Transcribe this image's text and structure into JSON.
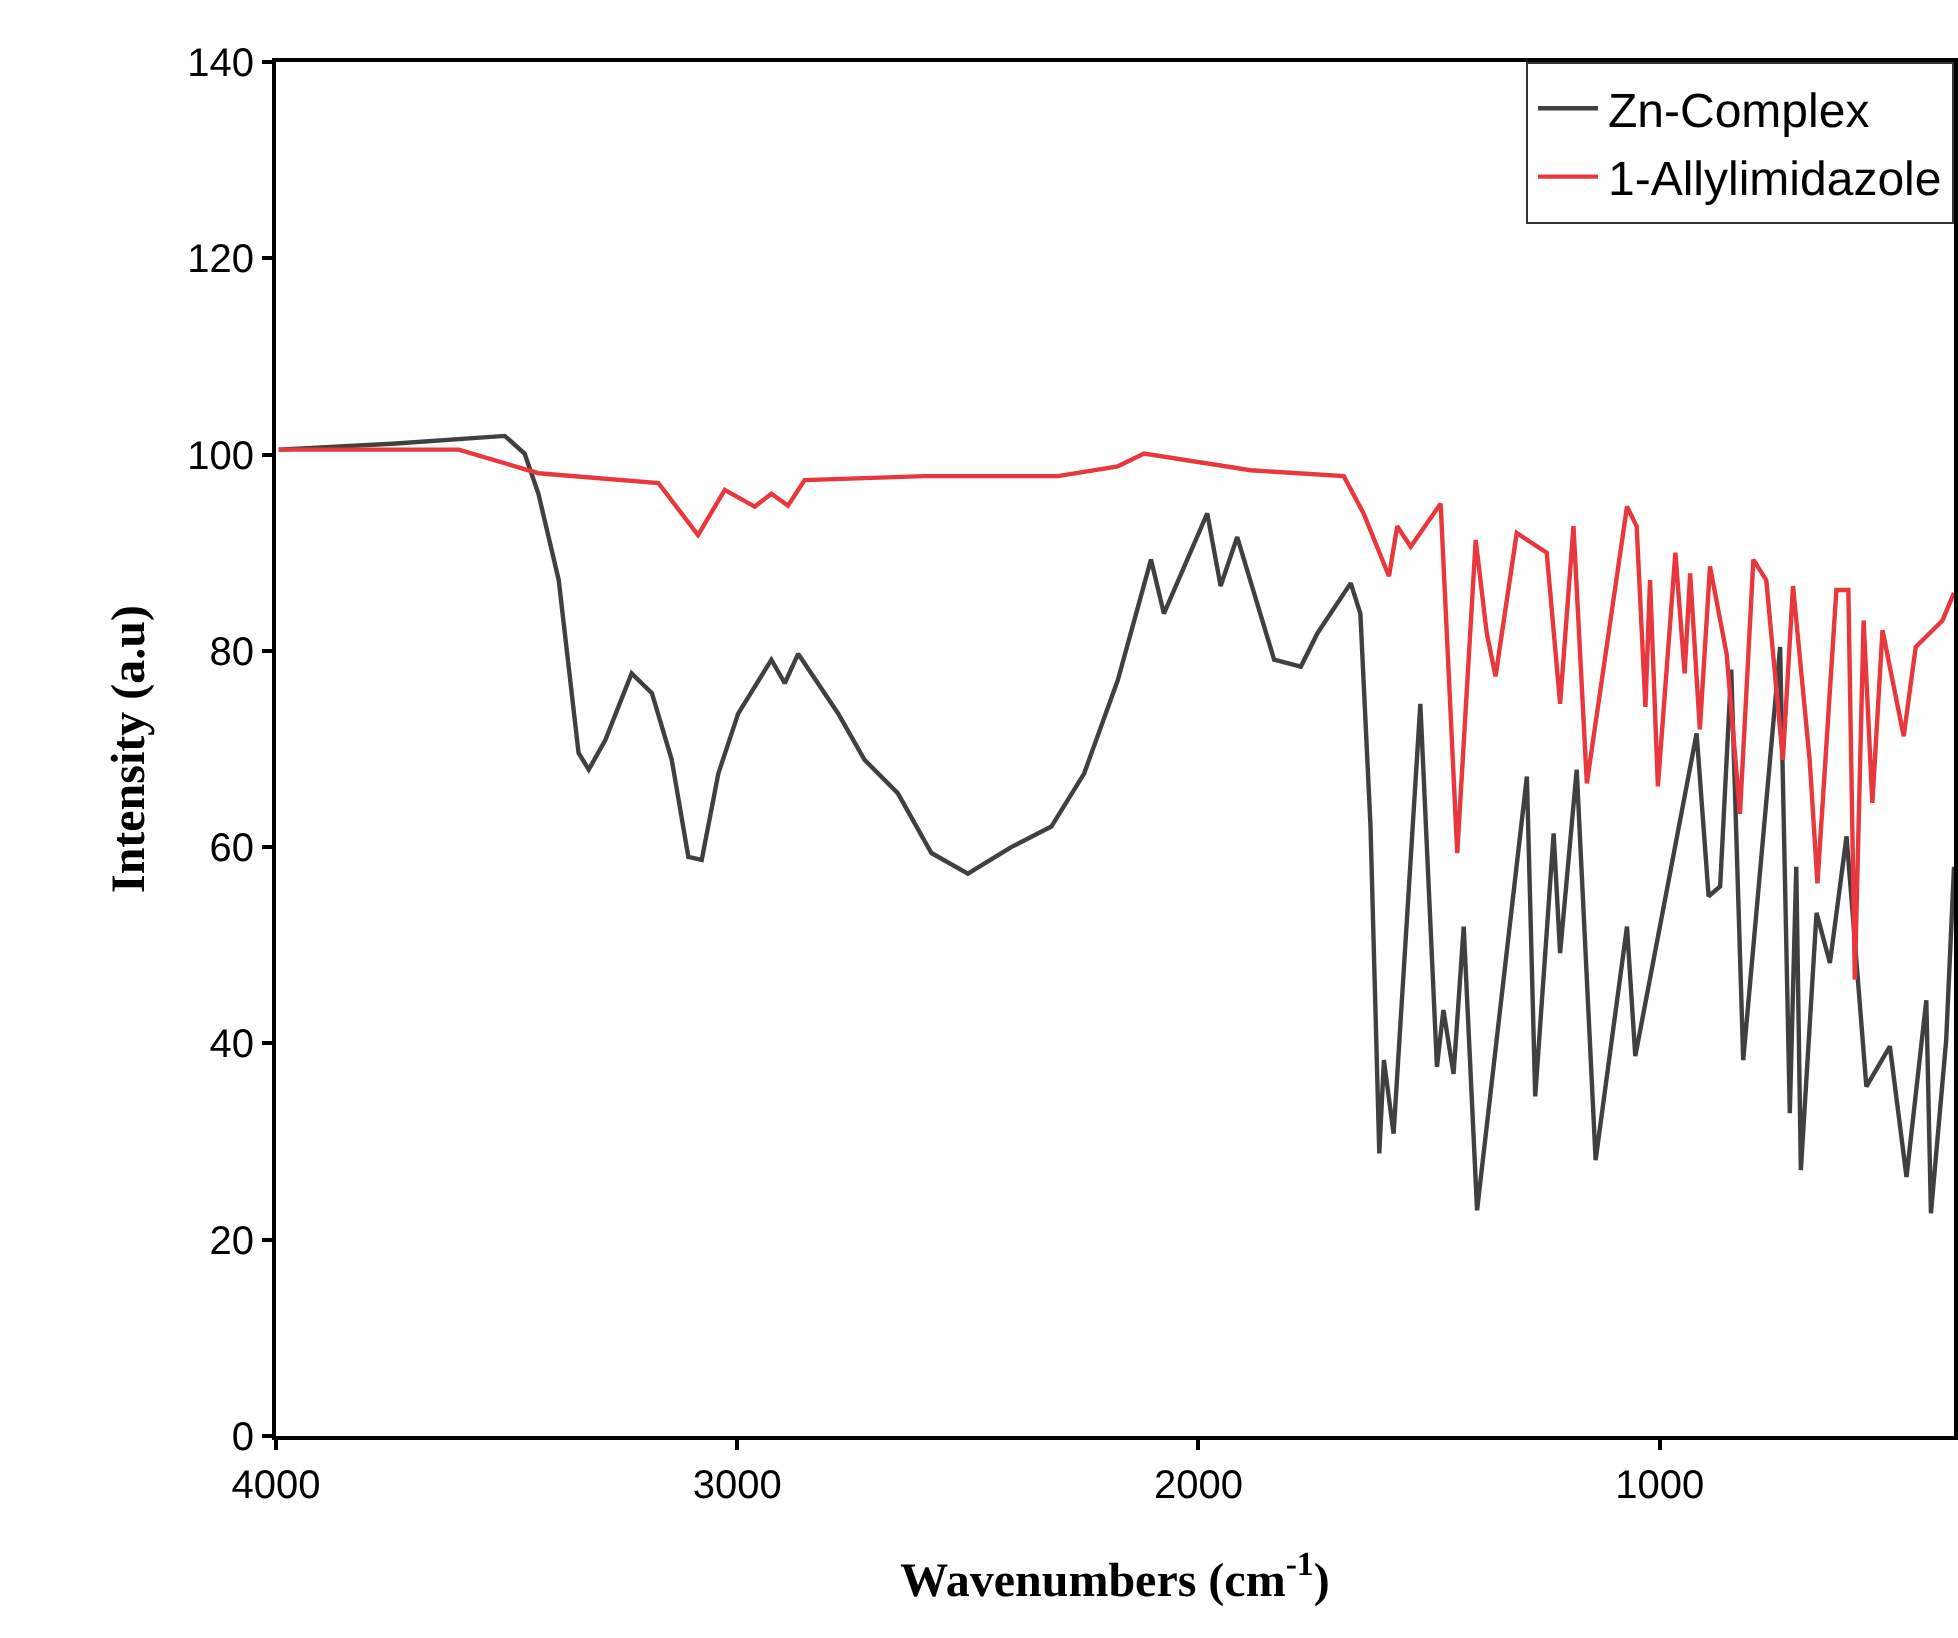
{
  "chart_data": {
    "type": "line",
    "xlabel": "Wavenumbers (cm$^{-1}$)",
    "ylabel": "Intensity (a.u)",
    "xlim": [
      4000,
      362
    ],
    "xticks": [
      4000,
      3000,
      2000,
      1000
    ],
    "ylim": [
      0,
      140
    ],
    "yticks": [
      0,
      20,
      40,
      60,
      80,
      100,
      120,
      140
    ],
    "grid": false,
    "legend": "top right",
    "marker": "none",
    "line_style": "solid",
    "series": [
      {
        "name": "Zn-Complex",
        "color": "#404040",
        "x": [
          3994,
          3748,
          3504,
          3461,
          3431,
          3387,
          3344,
          3322,
          3286,
          3229,
          3185,
          3142,
          3106,
          3077,
          3041,
          2998,
          2926,
          2897,
          2868,
          2781,
          2724,
          2652,
          2579,
          2500,
          2406,
          2319,
          2248,
          2175,
          2103,
          2075,
          1981,
          1952,
          1916,
          1836,
          1778,
          1742,
          1670,
          1649,
          1627,
          1608,
          1598,
          1577,
          1519,
          1483,
          1469,
          1447,
          1425,
          1396,
          1288,
          1270,
          1230,
          1216,
          1180,
          1139,
          1071,
          1053,
          920,
          894,
          869,
          845,
          819,
          739,
          718,
          704,
          694,
          660,
          631,
          595,
          552,
          501,
          465,
          422,
          412,
          379,
          362
        ],
        "values": [
          100.5,
          101.1,
          101.9,
          100.1,
          96,
          87.2,
          69.6,
          67.9,
          70.9,
          77.7,
          75.7,
          68.9,
          59.0,
          58.7,
          67.5,
          73.6,
          79.1,
          76.7,
          79.7,
          73.6,
          68.9,
          65.5,
          59.4,
          57.3,
          60.0,
          62.1,
          67.5,
          77.0,
          89.3,
          83.8,
          94.0,
          86.6,
          91.6,
          79.1,
          78.4,
          81.8,
          86.9,
          83.8,
          62.1,
          28.8,
          38.3,
          30.8,
          74.6,
          37.6,
          43.4,
          36.9,
          51.9,
          23.0,
          67.2,
          34.6,
          61.4,
          49.2,
          67.9,
          28.1,
          51.9,
          38.7,
          71.6,
          55.0,
          56.0,
          78.1,
          38.3,
          80.4,
          32.9,
          58.0,
          27.1,
          53.3,
          48.2,
          61.1,
          35.6,
          39.7,
          26.4,
          44.4,
          22.7,
          40.3,
          58.0
        ]
      },
      {
        "name": "1-Allylimidazole",
        "color": "#e8383d",
        "x": [
          3994,
          3604,
          3431,
          3171,
          3085,
          3027,
          2962,
          2926,
          2890,
          2854,
          2594,
          2305,
          2175,
          2118,
          1887,
          1685,
          1642,
          1587,
          1569,
          1540,
          1475,
          1439,
          1399,
          1375,
          1356,
          1310,
          1245,
          1216,
          1187,
          1158,
          1071,
          1050,
          1031,
          1021,
          1004,
          966,
          946,
          934,
          913,
          891,
          855,
          826,
          797,
          769,
          733,
          711,
          675,
          658,
          617,
          591,
          577,
          558,
          539,
          517,
          471,
          445,
          387,
          362
        ],
        "values": [
          100.5,
          100.5,
          98.1,
          97.1,
          91.8,
          96.4,
          94.7,
          96.0,
          94.8,
          97.4,
          97.8,
          97.8,
          98.8,
          100.1,
          98.4,
          97.8,
          94.0,
          87.6,
          92.7,
          90.6,
          95.0,
          59.4,
          91.3,
          81.8,
          77.4,
          92.0,
          90.0,
          74.6,
          92.7,
          66.5,
          94.7,
          92.7,
          74.3,
          87.2,
          66.2,
          90.0,
          77.7,
          87.9,
          72.0,
          88.6,
          79.7,
          63.4,
          89.3,
          87.2,
          68.9,
          86.6,
          68.9,
          56.3,
          86.2,
          86.2,
          46.5,
          83.1,
          64.5,
          82.1,
          71.3,
          80.4,
          83.1,
          85.9
        ]
      }
    ]
  }
}
